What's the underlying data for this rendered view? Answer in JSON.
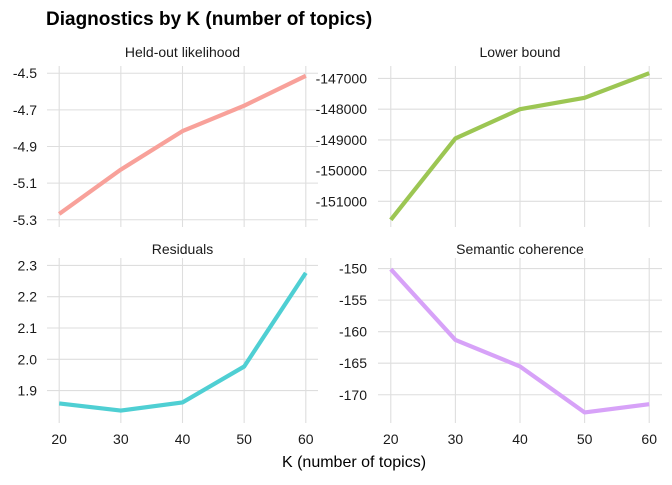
{
  "title": "Diagnostics by K (number of topics)",
  "xlabel": "K (number of topics)",
  "chart_data": [
    {
      "type": "line",
      "title": "Held-out likelihood",
      "color": "#F8A19A",
      "x": [
        20,
        30,
        40,
        50,
        60
      ],
      "y": [
        -5.268,
        -5.026,
        -4.816,
        -4.677,
        -4.514
      ],
      "yticks": [
        -4.5,
        -4.7,
        -4.9,
        -5.1,
        -5.3
      ],
      "ytick_labels": [
        "-4.5",
        "-4.7",
        "-4.9",
        "-5.1",
        "-5.3"
      ],
      "xticks": [
        20,
        30,
        40,
        50,
        60
      ],
      "ylim": [
        -5.3,
        -4.5
      ]
    },
    {
      "type": "line",
      "title": "Lower bound",
      "color": "#9CC653",
      "x": [
        20,
        30,
        40,
        50,
        60
      ],
      "y": [
        -151600,
        -148950,
        -148000,
        -147630,
        -146830
      ],
      "yticks": [
        -147000,
        -148000,
        -149000,
        -150000,
        -151000
      ],
      "ytick_labels": [
        "-147000",
        "-148000",
        "-149000",
        "-150000",
        "-151000"
      ],
      "xticks": [
        20,
        30,
        40,
        50,
        60
      ],
      "ylim": [
        -151600,
        -146830
      ]
    },
    {
      "type": "line",
      "title": "Residuals",
      "color": "#4FCFD3",
      "x": [
        20,
        30,
        40,
        50,
        60
      ],
      "y": [
        1.859,
        1.836,
        1.862,
        1.977,
        2.276
      ],
      "yticks": [
        2.3,
        2.2,
        2.1,
        2.0,
        1.9
      ],
      "ytick_labels": [
        "2.3",
        "2.2",
        "2.1",
        "2.0",
        "1.9"
      ],
      "xticks": [
        20,
        30,
        40,
        50,
        60
      ],
      "xtick_labels": [
        "20",
        "30",
        "40",
        "50",
        "60"
      ],
      "ylim": [
        1.82,
        2.3
      ]
    },
    {
      "type": "line",
      "title": "Semantic coherence",
      "color": "#D7A2F8",
      "x": [
        20,
        30,
        40,
        50,
        60
      ],
      "y": [
        -150.1,
        -161.3,
        -165.5,
        -172.8,
        -171.5
      ],
      "yticks": [
        -150,
        -155,
        -160,
        -165,
        -170
      ],
      "ytick_labels": [
        "-150",
        "-155",
        "-160",
        "-165",
        "-170"
      ],
      "xticks": [
        20,
        30,
        40,
        50,
        60
      ],
      "xtick_labels": [
        "20",
        "30",
        "40",
        "50",
        "60"
      ],
      "ylim": [
        -173.3,
        -149.5
      ]
    }
  ]
}
